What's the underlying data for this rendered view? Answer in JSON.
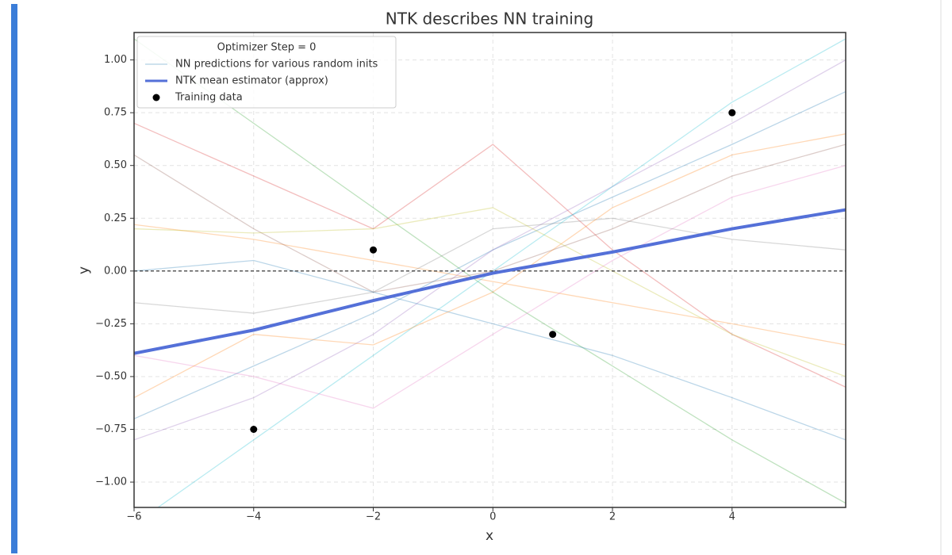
{
  "chart_data": {
    "type": "line",
    "title": "NTK describes NN training",
    "x_label": "x",
    "y_label": "y",
    "xlim": [
      -6,
      5.9
    ],
    "ylim": [
      -1.12,
      1.13
    ],
    "xticks": [
      {
        "value": -6,
        "label": "−6"
      },
      {
        "value": -4,
        "label": "−4"
      },
      {
        "value": -2,
        "label": "−2"
      },
      0,
      2,
      4
    ],
    "yticks": [
      {
        "value": -1,
        "label": "−1.00"
      },
      {
        "value": -0.75,
        "label": "−0.75"
      },
      {
        "value": -0.5,
        "label": "−0.50"
      },
      {
        "value": -0.25,
        "label": "−0.25"
      },
      {
        "value": 0,
        "label": "0.00"
      },
      {
        "value": 0.25,
        "label": "0.25"
      },
      {
        "value": 0.5,
        "label": "0.50"
      },
      {
        "value": 0.75,
        "label": "0.75"
      },
      {
        "value": 1,
        "label": "1.00"
      }
    ],
    "grid": true,
    "hline": 0,
    "legend_title": "Optimizer Step = 0",
    "legend_corner": "upper-left",
    "x": [
      -6,
      -4,
      -2,
      0,
      2,
      4,
      5.9
    ],
    "nn_predictions": {
      "name": "NN predictions for various random inits",
      "colors": [
        "#1f77b4",
        "#ff7f0e",
        "#2ca02c",
        "#d62728",
        "#9467bd",
        "#8c564b",
        "#e377c2",
        "#7f7f7f",
        "#bcbd22",
        "#17becf",
        "#1f77b4",
        "#ff7f0e"
      ],
      "lines": [
        [
          -0.7,
          -0.45,
          -0.2,
          0.1,
          0.35,
          0.6,
          0.85
        ],
        [
          0.22,
          0.15,
          0.05,
          -0.05,
          -0.15,
          -0.25,
          -0.35
        ],
        [
          1.1,
          0.7,
          0.3,
          -0.1,
          -0.45,
          -0.8,
          -1.1
        ],
        [
          0.7,
          0.45,
          0.2,
          0.6,
          0.1,
          -0.3,
          -0.55
        ],
        [
          -0.8,
          -0.6,
          -0.3,
          0.1,
          0.4,
          0.7,
          1.0
        ],
        [
          0.55,
          0.2,
          -0.1,
          0.0,
          0.2,
          0.45,
          0.6
        ],
        [
          -0.4,
          -0.5,
          -0.65,
          -0.3,
          0.05,
          0.35,
          0.5
        ],
        [
          -0.15,
          -0.2,
          -0.1,
          0.2,
          0.25,
          0.15,
          0.1
        ],
        [
          0.2,
          0.18,
          0.2,
          0.3,
          0.0,
          -0.3,
          -0.5
        ],
        [
          -1.2,
          -0.8,
          -0.4,
          0.0,
          0.4,
          0.8,
          1.1
        ],
        [
          0.0,
          0.05,
          -0.1,
          -0.25,
          -0.4,
          -0.6,
          -0.8
        ],
        [
          -0.6,
          -0.3,
          -0.35,
          -0.1,
          0.3,
          0.55,
          0.65
        ]
      ]
    },
    "series": [
      {
        "name": "NTK mean estimator (approx)",
        "color": "#5470d8",
        "values": [
          -0.39,
          -0.28,
          -0.14,
          -0.01,
          0.09,
          0.2,
          0.29
        ]
      }
    ],
    "training_data": {
      "name": "Training data",
      "color": "#000000",
      "x": [
        -4,
        -2,
        1,
        4
      ],
      "values": [
        -0.75,
        0.1,
        -0.3,
        0.75
      ]
    }
  }
}
